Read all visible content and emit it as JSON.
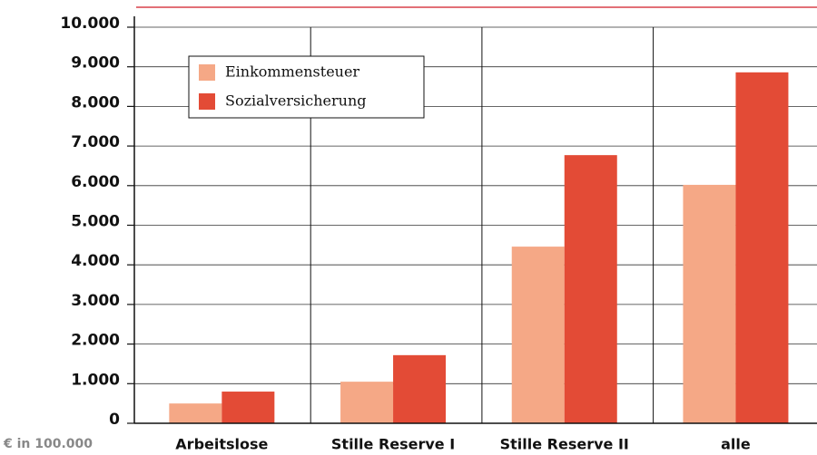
{
  "chart_data": {
    "type": "bar",
    "ylabel": "€ in 100.000",
    "categories": [
      "Arbeitslose",
      "Stille Reserve I",
      "Stille Reserve II",
      "alle"
    ],
    "series": [
      {
        "name": "Einkommensteuer",
        "color": "#f5a886",
        "values": [
          500,
          1050,
          4460,
          6020
        ]
      },
      {
        "name": "Sozialversicherung",
        "color": "#e34b36",
        "values": [
          800,
          1720,
          6770,
          8860
        ]
      }
    ],
    "ylim": [
      0,
      10000
    ],
    "yticks": [
      0,
      {
        "value": 1000,
        "label": "1.000"
      },
      {
        "value": 2000,
        "label": "2.000"
      },
      {
        "value": 3000,
        "label": "3.000"
      },
      {
        "value": 4000,
        "label": "4.000"
      },
      {
        "value": 5000,
        "label": "5.000"
      },
      {
        "value": 6000,
        "label": "6.000"
      },
      {
        "value": 7000,
        "label": "7.000"
      },
      {
        "value": 8000,
        "label": "8.000"
      },
      {
        "value": 9000,
        "label": "9.000"
      },
      {
        "value": 10000,
        "label": "10.000"
      }
    ],
    "grid": true,
    "legend": "upper left"
  }
}
